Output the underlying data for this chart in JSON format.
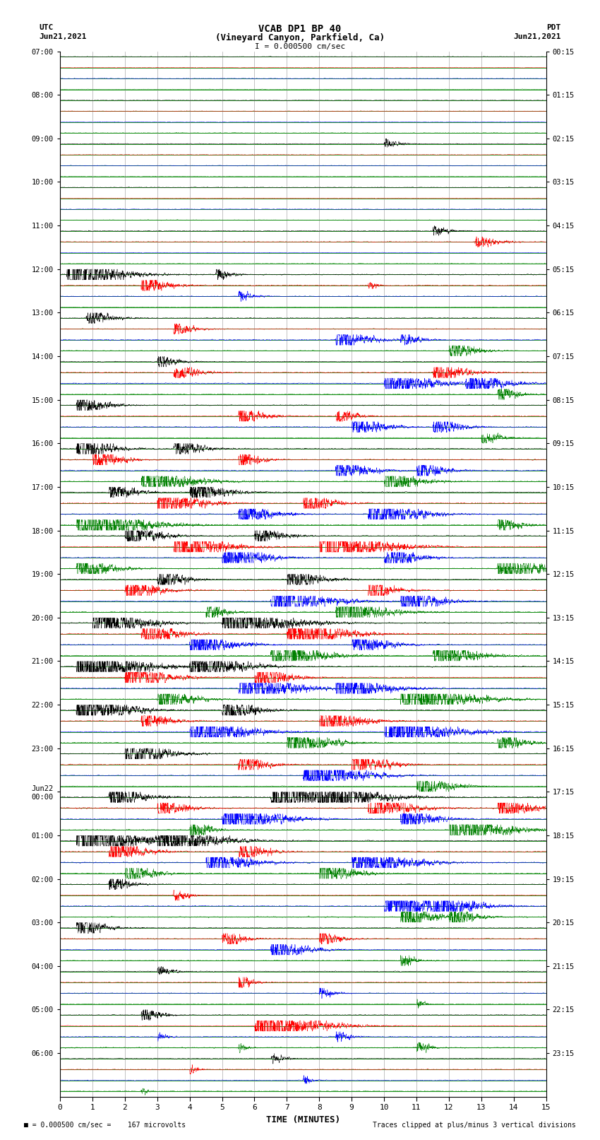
{
  "title_line1": "VCAB DP1 BP 40",
  "title_line2": "(Vineyard Canyon, Parkfield, Ca)",
  "scale_text": "I = 0.000500 cm/sec",
  "utc_label": "UTC",
  "utc_date": "Jun21,2021",
  "pdt_label": "PDT",
  "pdt_date": "Jun21,2021",
  "xlabel": "TIME (MINUTES)",
  "footer_left": "= 0.000500 cm/sec =    167 microvolts",
  "footer_right": "Traces clipped at plus/minus 3 vertical divisions",
  "left_times": [
    "07:00",
    "08:00",
    "09:00",
    "10:00",
    "11:00",
    "12:00",
    "13:00",
    "14:00",
    "15:00",
    "16:00",
    "17:00",
    "18:00",
    "19:00",
    "20:00",
    "21:00",
    "22:00",
    "23:00",
    "Jun22\n00:00",
    "01:00",
    "02:00",
    "03:00",
    "04:00",
    "05:00",
    "06:00"
  ],
  "right_times": [
    "00:15",
    "01:15",
    "02:15",
    "03:15",
    "04:15",
    "05:15",
    "06:15",
    "07:15",
    "08:15",
    "09:15",
    "10:15",
    "11:15",
    "12:15",
    "13:15",
    "14:15",
    "15:15",
    "16:15",
    "17:15",
    "18:15",
    "19:15",
    "20:15",
    "21:15",
    "22:15",
    "23:15"
  ],
  "n_rows": 24,
  "n_traces_per_row": 4,
  "colors": [
    "black",
    "red",
    "blue",
    "green"
  ],
  "x_min": 0,
  "x_max": 15,
  "x_ticks": [
    0,
    1,
    2,
    3,
    4,
    5,
    6,
    7,
    8,
    9,
    10,
    11,
    12,
    13,
    14,
    15
  ],
  "bg_color": "#ffffff",
  "grid_color": "#008800",
  "vgrid_color": "#888888",
  "noise_base": 0.012,
  "clip_level": 0.45
}
